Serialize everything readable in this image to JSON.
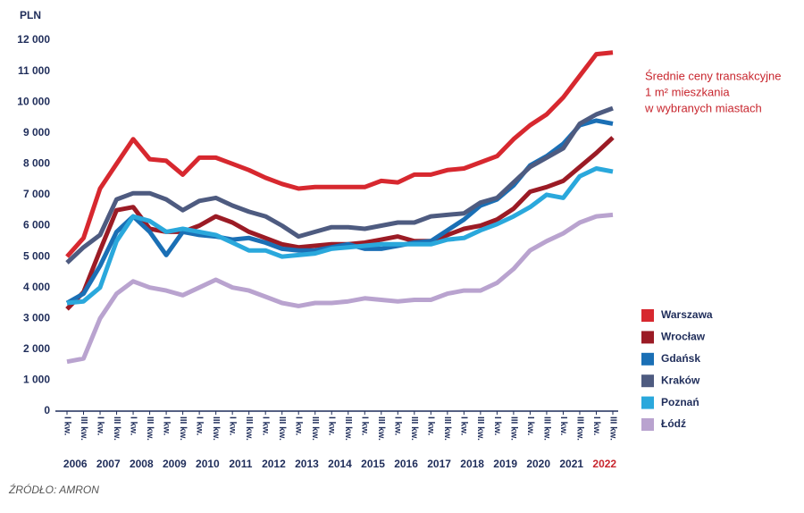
{
  "chart_data": {
    "type": "line",
    "title_lines": [
      "Średnie ceny transakcyjne",
      "1 m² mieszkania",
      "w wybranych miastach"
    ],
    "unit": "PLN",
    "source": "ŹRÓDŁO: AMRON",
    "categories": [
      "I kw.",
      "III kw.",
      "I kw.",
      "III kw.",
      "I kw.",
      "III kw.",
      "I kw.",
      "III kw.",
      "I kw.",
      "III kw.",
      "I kw.",
      "III kw.",
      "I kw.",
      "III kw.",
      "I kw.",
      "III kw.",
      "I kw.",
      "III kw.",
      "I kw.",
      "III kw.",
      "I kw.",
      "III kw.",
      "I kw.",
      "III kw.",
      "I kw.",
      "III kw.",
      "I kw.",
      "III kw.",
      "I kw.",
      "III kw.",
      "I kw.",
      "III kw.",
      "I kw.",
      "III kw."
    ],
    "years": [
      "2006",
      "2007",
      "2008",
      "2009",
      "2010",
      "2011",
      "2012",
      "2013",
      "2014",
      "2015",
      "2016",
      "2017",
      "2018",
      "2019",
      "2020",
      "2021",
      "2022"
    ],
    "ylim": [
      0,
      12000
    ],
    "yticks": [
      0,
      {
        "value": 1000,
        "label": "1 000"
      },
      {
        "value": 2000,
        "label": "2 000"
      },
      {
        "value": 3000,
        "label": "3 000"
      },
      {
        "value": 4000,
        "label": "4 000"
      },
      {
        "value": 5000,
        "label": "5 000"
      },
      {
        "value": 6000,
        "label": "6 000"
      },
      {
        "value": 7000,
        "label": "7 000"
      },
      {
        "value": 8000,
        "label": "8 000"
      },
      {
        "value": 9000,
        "label": "9 000"
      },
      {
        "value": 10000,
        "label": "10 000"
      },
      {
        "value": 11000,
        "label": "11 000"
      },
      {
        "value": 12000,
        "label": "12 000"
      }
    ],
    "grid": false,
    "legend": "right",
    "series": [
      {
        "name": "Warszawa",
        "color": "#d7282f",
        "values": [
          5000,
          5600,
          7200,
          8000,
          8800,
          8150,
          8100,
          7650,
          8200,
          8200,
          8000,
          7800,
          7550,
          7350,
          7200,
          7250,
          7250,
          7250,
          7250,
          7450,
          7400,
          7650,
          7650,
          7800,
          7850,
          8050,
          8250,
          8800,
          9250,
          9600,
          10150,
          10850,
          11550,
          11600
        ]
      },
      {
        "name": "Wrocław",
        "color": "#9b1b25",
        "values": [
          3300,
          3850,
          5200,
          6500,
          6600,
          5900,
          5800,
          5800,
          6000,
          6300,
          6100,
          5800,
          5600,
          5400,
          5300,
          5350,
          5400,
          5400,
          5450,
          5550,
          5650,
          5500,
          5500,
          5700,
          5900,
          6000,
          6200,
          6550,
          7100,
          7250,
          7450,
          7900,
          8350,
          8850
        ]
      },
      {
        "name": "Gdańsk",
        "color": "#1a6fb5",
        "values": [
          3500,
          3800,
          4700,
          5800,
          6300,
          5800,
          5050,
          5800,
          5700,
          5650,
          5550,
          5600,
          5450,
          5250,
          5200,
          5200,
          5300,
          5400,
          5250,
          5250,
          5350,
          5450,
          5500,
          5850,
          6200,
          6650,
          6850,
          7300,
          7950,
          8250,
          8650,
          9250,
          9400,
          9300
        ]
      },
      {
        "name": "Kraków",
        "color": "#4e5b80",
        "values": [
          4800,
          5300,
          5700,
          6850,
          7050,
          7050,
          6850,
          6500,
          6800,
          6900,
          6650,
          6450,
          6300,
          6000,
          5650,
          5800,
          5950,
          5950,
          5900,
          6000,
          6100,
          6100,
          6300,
          6350,
          6400,
          6750,
          6900,
          7400,
          7900,
          8200,
          8500,
          9300,
          9600,
          9800
        ]
      },
      {
        "name": "Poznań",
        "color": "#2aa8dc",
        "values": [
          3500,
          3550,
          4000,
          5500,
          6300,
          6150,
          5800,
          5900,
          5800,
          5700,
          5450,
          5200,
          5200,
          5000,
          5050,
          5100,
          5250,
          5300,
          5350,
          5400,
          5400,
          5400,
          5400,
          5550,
          5600,
          5850,
          6050,
          6300,
          6600,
          7000,
          6900,
          7600,
          7850,
          7750
        ]
      },
      {
        "name": "Łódź",
        "color": "#b9a3cf",
        "values": [
          1600,
          1700,
          3000,
          3800,
          4200,
          4000,
          3900,
          3750,
          4000,
          4250,
          4000,
          3900,
          3700,
          3500,
          3400,
          3500,
          3500,
          3550,
          3650,
          3600,
          3550,
          3600,
          3600,
          3800,
          3900,
          3900,
          4150,
          4600,
          5200,
          5500,
          5750,
          6100,
          6300,
          6350
        ]
      }
    ]
  }
}
